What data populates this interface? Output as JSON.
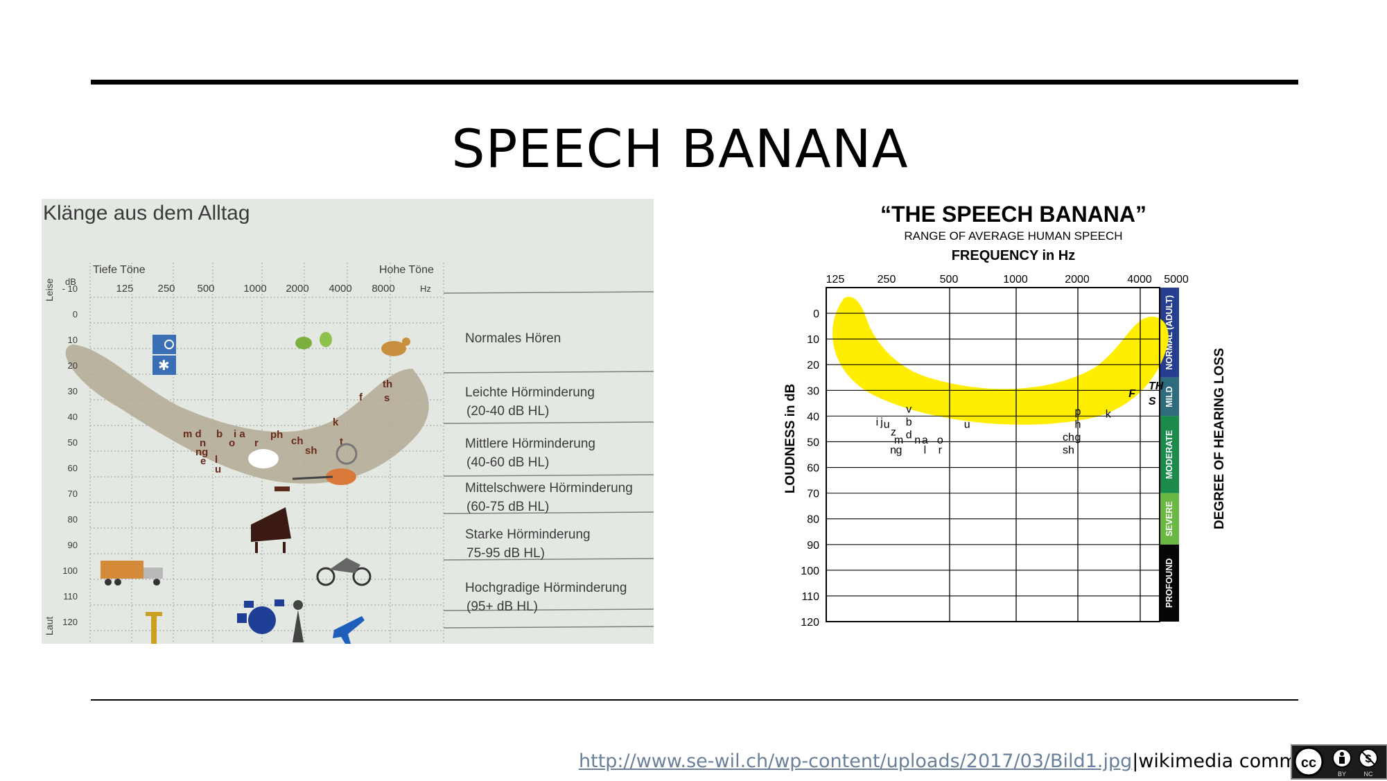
{
  "slide": {
    "title": "SPEECH BANANA",
    "footer_link": "http://www.se-wil.ch/wp-content/uploads/2017/03/Bild1.jpg",
    "footer_sep": "|",
    "footer_source": "wikimedia commons",
    "license_badge": {
      "labels": [
        "BY",
        "NC"
      ],
      "icons": [
        "cc-icon",
        "by-person-icon",
        "nc-dollar-icon"
      ]
    }
  },
  "photo_chart": {
    "title": "Klänge aus dem Alltag",
    "low_label": "Tiefe Töne",
    "high_label": "Hohe Töne",
    "quiet_label": "Leise",
    "loud_label": "Laut",
    "db_unit": "dB",
    "hz_unit": "Hz",
    "freq_ticks": [
      "125",
      "250",
      "500",
      "1000",
      "2000",
      "4000",
      "8000"
    ],
    "db_ticks": [
      "- 10",
      "0",
      "10",
      "20",
      "30",
      "40",
      "50",
      "60",
      "70",
      "80",
      "90",
      "100",
      "110",
      "120"
    ],
    "bands": [
      {
        "line1": "Normales Hören",
        "line2": ""
      },
      {
        "line1": "Leichte Hörminderung",
        "line2": "(20-40 dB HL)"
      },
      {
        "line1": "Mittlere Hörminderung",
        "line2": "(40-60 dB HL)"
      },
      {
        "line1": "Mittelschwere Hörminderung",
        "line2": "(60-75 dB HL)"
      },
      {
        "line1": "Starke Hörminderung",
        "line2": "75-95 dB HL)"
      },
      {
        "line1": "Hochgradige Hörminderung",
        "line2": "(95+ dB HL)"
      }
    ],
    "phonemes": [
      "m d",
      "b",
      "i a",
      "n",
      "ng",
      "e",
      "l",
      "u",
      "o",
      "r",
      "ph",
      "ch",
      "sh",
      "k",
      "t",
      "f",
      "th",
      "s"
    ],
    "icons": [
      "clock-icon",
      "snowflake-icon",
      "leaf-icon",
      "bird-icon",
      "speech-bubble-icon",
      "vacuum-icon",
      "razor-icon",
      "piano-icon",
      "truck-icon",
      "motorcycle-icon",
      "drums-icon",
      "person-icon",
      "jackhammer-icon",
      "airplane-icon"
    ]
  },
  "chart_data": {
    "type": "audiogram",
    "title": "“THE SPEECH BANANA”",
    "subtitle": "RANGE OF AVERAGE HUMAN SPEECH",
    "xlabel": "FREQUENCY in Hz",
    "ylabel": "LOUDNESS in dB",
    "right_label": "DEGREE OF HEARING LOSS",
    "x_ticks": [
      "125",
      "250",
      "500",
      "1000",
      "2000",
      "4000",
      "5000"
    ],
    "y_ticks": [
      "0",
      "10",
      "20",
      "30",
      "40",
      "50",
      "60",
      "70",
      "80",
      "90",
      "100",
      "110",
      "120"
    ],
    "ylim": [
      -10,
      120
    ],
    "banana_color": "#ffee00",
    "degrees": [
      {
        "label": "NORMAL (ADULT)",
        "from": -10,
        "to": 25,
        "color": "#253f8e"
      },
      {
        "label": "MILD",
        "from": 25,
        "to": 40,
        "color": "#2d6b7d"
      },
      {
        "label": "MODERATE",
        "from": 40,
        "to": 70,
        "color": "#1b8a4a"
      },
      {
        "label": "SEVERE",
        "from": 70,
        "to": 90,
        "color": "#6cb845"
      },
      {
        "label": "PROFOUND",
        "from": 90,
        "to": 120,
        "color": "#050505"
      }
    ],
    "phonemes": [
      {
        "text": "i",
        "x": 218,
        "y": 42
      },
      {
        "text": "j",
        "x": 232,
        "y": 42
      },
      {
        "text": "u",
        "x": 248,
        "y": 43
      },
      {
        "text": "z",
        "x": 268,
        "y": 46
      },
      {
        "text": "m",
        "x": 284,
        "y": 49
      },
      {
        "text": "v",
        "x": 318,
        "y": 37
      },
      {
        "text": "b",
        "x": 318,
        "y": 42
      },
      {
        "text": "d",
        "x": 318,
        "y": 47
      },
      {
        "text": "n",
        "x": 350,
        "y": 49
      },
      {
        "text": "a",
        "x": 380,
        "y": 49
      },
      {
        "text": "n",
        "x": 267,
        "y": 53
      },
      {
        "text": "g",
        "x": 285,
        "y": 53
      },
      {
        "text": "l",
        "x": 380,
        "y": 53
      },
      {
        "text": "o",
        "x": 450,
        "y": 49
      },
      {
        "text": "r",
        "x": 450,
        "y": 53
      },
      {
        "text": "u",
        "x": 600,
        "y": 43
      },
      {
        "text": "p",
        "x": 2000,
        "y": 38
      },
      {
        "text": "h",
        "x": 2000,
        "y": 43
      },
      {
        "text": "g",
        "x": 2000,
        "y": 48
      },
      {
        "text": "ch",
        "x": 1800,
        "y": 48
      },
      {
        "text": "sh",
        "x": 1800,
        "y": 53
      },
      {
        "text": "k",
        "x": 2800,
        "y": 39
      },
      {
        "text": "F",
        "x": 3650,
        "y": 31
      },
      {
        "text": "TH",
        "x": 4400,
        "y": 28
      },
      {
        "text": "S",
        "x": 4300,
        "y": 34
      }
    ]
  }
}
